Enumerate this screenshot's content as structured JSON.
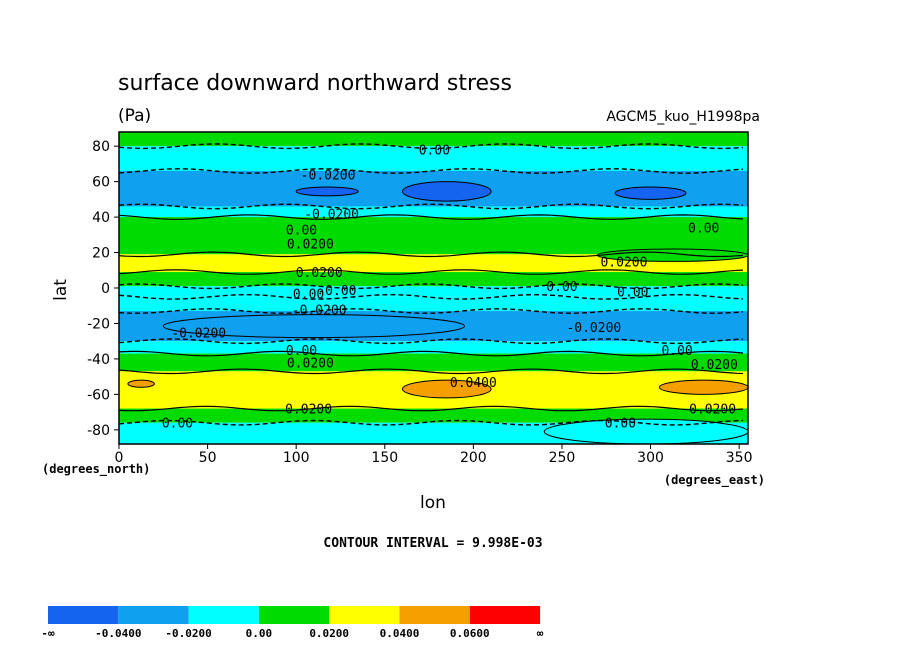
{
  "chart_data": {
    "type": "heatmap",
    "title": "surface downward northward stress",
    "units": "(Pa)",
    "dataset": "AGCM5_kuo_H1998pa",
    "xlabel": "lon",
    "ylabel": "lat",
    "x_unit_note": "(degrees_east)",
    "y_unit_note": "(degrees_north)",
    "xlim": [
      0,
      355
    ],
    "ylim": [
      -88,
      88
    ],
    "xticks": [
      0,
      50,
      100,
      150,
      200,
      250,
      300,
      350
    ],
    "yticks": [
      80,
      60,
      40,
      20,
      0,
      -20,
      -40,
      -60,
      -80
    ],
    "contour_interval_text": "CONTOUR INTERVAL = 9.998E-03",
    "colorbar": {
      "colors": [
        "#1464f0",
        "#0fa0f0",
        "#00ffff",
        "#00dc00",
        "#ffff00",
        "#f5a000",
        "#ff0000"
      ],
      "labels": [
        "-∞",
        "-0.0400",
        "-0.0200",
        "0.00",
        "0.0200",
        "0.0400",
        "0.0600",
        "∞"
      ]
    },
    "zonal_bands": [
      {
        "lat_top": 88,
        "lat_bottom": 80,
        "class": 3
      },
      {
        "lat_top": 80,
        "lat_bottom": 66,
        "class": 2
      },
      {
        "lat_top": 66,
        "lat_bottom": 46,
        "class": 1
      },
      {
        "lat_top": 46,
        "lat_bottom": 40,
        "class": 2
      },
      {
        "lat_top": 40,
        "lat_bottom": 19,
        "class": 3
      },
      {
        "lat_top": 19,
        "lat_bottom": 9,
        "class": 4
      },
      {
        "lat_top": 9,
        "lat_bottom": 1,
        "class": 3
      },
      {
        "lat_top": 1,
        "lat_bottom": -5,
        "class": 2
      },
      {
        "lat_top": -5,
        "lat_bottom": -13,
        "class": 2
      },
      {
        "lat_top": -13,
        "lat_bottom": -30,
        "class": 1
      },
      {
        "lat_top": -30,
        "lat_bottom": -37,
        "class": 2
      },
      {
        "lat_top": -37,
        "lat_bottom": -47,
        "class": 3
      },
      {
        "lat_top": -47,
        "lat_bottom": -68,
        "class": 4
      },
      {
        "lat_top": -68,
        "lat_bottom": -76,
        "class": 3
      },
      {
        "lat_top": -76,
        "lat_bottom": -88,
        "class": 2
      }
    ],
    "patches": [
      {
        "lon": [
          160,
          210
        ],
        "lat": [
          49,
          60
        ],
        "class": 0
      },
      {
        "lon": [
          280,
          320
        ],
        "lat": [
          50,
          57
        ],
        "class": 0
      },
      {
        "lon": [
          100,
          135
        ],
        "lat": [
          52,
          57
        ],
        "class": 0
      },
      {
        "lon": [
          25,
          195
        ],
        "lat": [
          -28,
          -15
        ],
        "class": 1
      },
      {
        "lon": [
          160,
          210
        ],
        "lat": [
          -62,
          -52
        ],
        "class": 5
      },
      {
        "lon": [
          305,
          355
        ],
        "lat": [
          -60,
          -52
        ],
        "class": 5
      },
      {
        "lon": [
          5,
          20
        ],
        "lat": [
          -56,
          -52
        ],
        "class": 5
      },
      {
        "lon": [
          270,
          355
        ],
        "lat": [
          15,
          22
        ],
        "class": 3
      },
      {
        "lon": [
          240,
          355
        ],
        "lat": [
          -88,
          -74
        ],
        "class": 2
      }
    ],
    "contour_labels": [
      {
        "lon": 178,
        "lat": 78,
        "text": "0.00"
      },
      {
        "lon": 118,
        "lat": 64,
        "text": "-0.0200"
      },
      {
        "lon": 120,
        "lat": 42,
        "text": "-0.0200"
      },
      {
        "lon": 103,
        "lat": 33,
        "text": "0.00"
      },
      {
        "lon": 108,
        "lat": 25,
        "text": "0.0200"
      },
      {
        "lon": 330,
        "lat": 34,
        "text": "0.00"
      },
      {
        "lon": 285,
        "lat": 15,
        "text": "0.0200"
      },
      {
        "lon": 113,
        "lat": 9,
        "text": "0.0200"
      },
      {
        "lon": 250,
        "lat": 1,
        "text": "0.00"
      },
      {
        "lon": 290,
        "lat": -2,
        "text": "0.00"
      },
      {
        "lon": 107,
        "lat": -3,
        "text": "0.00"
      },
      {
        "lon": 123,
        "lat": -1,
        "text": "-0.00"
      },
      {
        "lon": 113,
        "lat": -12,
        "text": "-0.0200"
      },
      {
        "lon": 45,
        "lat": -25,
        "text": "-0.0200"
      },
      {
        "lon": 268,
        "lat": -22,
        "text": "-0.0200"
      },
      {
        "lon": 103,
        "lat": -35,
        "text": "0.00"
      },
      {
        "lon": 108,
        "lat": -42,
        "text": "0.0200"
      },
      {
        "lon": 315,
        "lat": -35,
        "text": "0.00"
      },
      {
        "lon": 336,
        "lat": -43,
        "text": "0.0200"
      },
      {
        "lon": 200,
        "lat": -53,
        "text": "0.0400"
      },
      {
        "lon": 107,
        "lat": -68,
        "text": "0.0200"
      },
      {
        "lon": 335,
        "lat": -68,
        "text": "0.0200"
      },
      {
        "lon": 33,
        "lat": -76,
        "text": "0.00"
      },
      {
        "lon": 283,
        "lat": -76,
        "text": "0.00"
      }
    ]
  }
}
